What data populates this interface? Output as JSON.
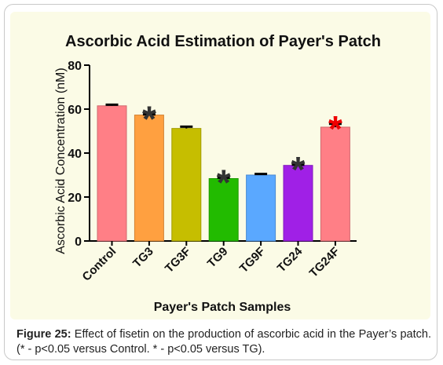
{
  "chart_data": {
    "type": "bar",
    "title": "Ascorbic Acid Estimation of Payer's Patch",
    "xlabel": "Payer's Patch Samples",
    "ylabel": "Ascorbic Acid Concentration (nM)",
    "ylim": [
      0,
      80
    ],
    "yticks": [
      "0",
      "20",
      "40",
      "60",
      "80"
    ],
    "categories": [
      "Control",
      "TG3",
      "TG3F",
      "TG9",
      "TG9F",
      "TG24",
      "TG24F"
    ],
    "values": [
      61.5,
      57.3,
      51.2,
      28.4,
      30.0,
      34.4,
      51.8
    ],
    "errors": [
      0.5,
      0.3,
      0.8,
      0.4,
      0.5,
      0.3,
      1.5
    ],
    "colors": [
      "#ff7f86",
      "#ffa040",
      "#c6be00",
      "#22bb00",
      "#5aa8ff",
      "#a020e6",
      "#ff7f86"
    ],
    "annotations": [
      {
        "category": "TG3",
        "text": "*",
        "color": "#333333"
      },
      {
        "category": "TG9",
        "text": "*",
        "color": "#333333"
      },
      {
        "category": "TG24",
        "text": "*",
        "color": "#333333"
      },
      {
        "category": "TG24F",
        "text": "*",
        "color": "#ee0000"
      }
    ]
  },
  "caption": {
    "label": "Figure 25:",
    "text": " Effect of fisetin on the production of ascorbic acid in the Payer’s patch. (* - p<0.05 versus Control. * - p<0.05 versus TG)."
  }
}
